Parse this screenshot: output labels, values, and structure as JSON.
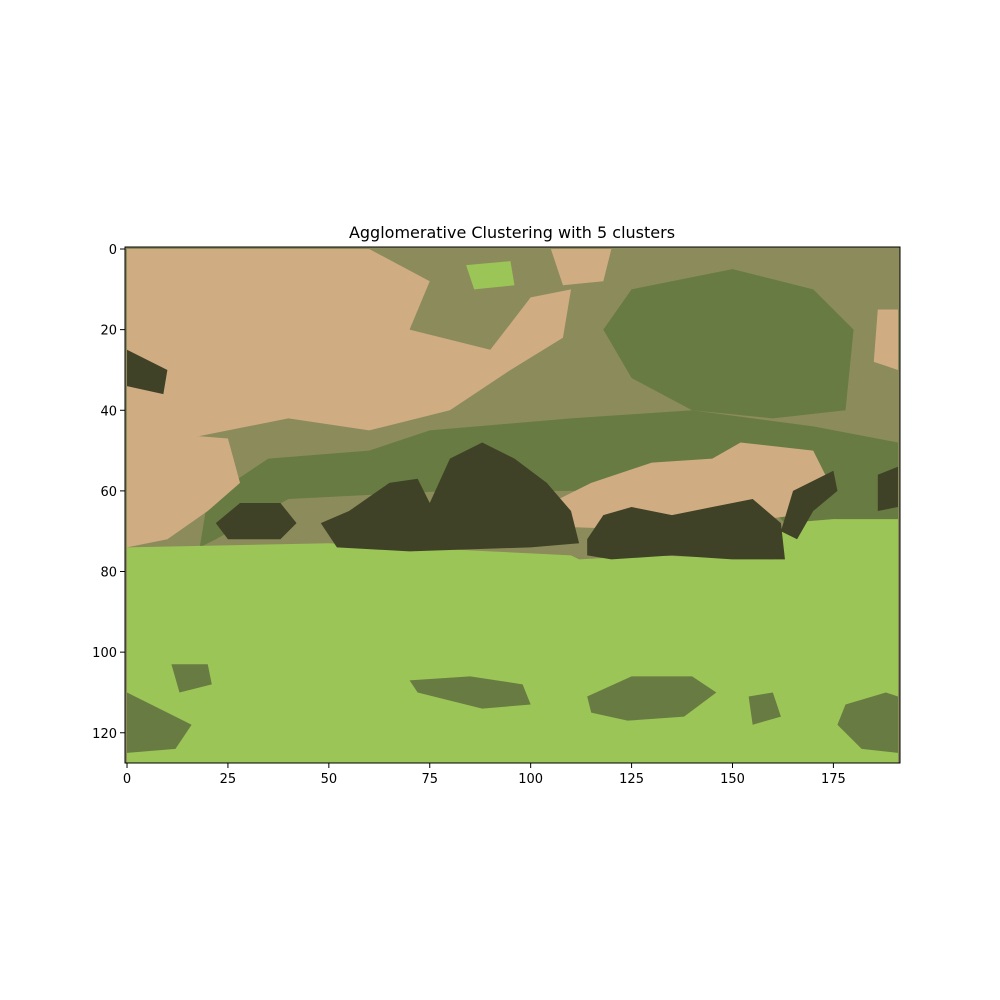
{
  "chart_data": {
    "type": "heatmap",
    "title": "Agglomerative Clustering with 5 clusters",
    "xlabel": "",
    "ylabel": "",
    "grid": false,
    "image_shape": [
      128,
      192
    ],
    "xlim": [
      -0.5,
      191.5
    ],
    "ylim": [
      127.5,
      -0.5
    ],
    "x_ticks": [
      0,
      25,
      50,
      75,
      100,
      125,
      150,
      175
    ],
    "y_ticks": [
      0,
      20,
      40,
      60,
      80,
      100,
      120
    ],
    "cluster_colors": [
      "#cfac82",
      "#8c8b5b",
      "#687b42",
      "#3f4227",
      "#9bc556"
    ],
    "regions": [
      {
        "cluster": 0,
        "description_rows": [
          0,
          45
        ],
        "x_range": [
          0,
          110
        ],
        "polygon": [
          [
            0,
            0
          ],
          [
            60,
            0
          ],
          [
            75,
            8
          ],
          [
            70,
            20
          ],
          [
            90,
            25
          ],
          [
            100,
            12
          ],
          [
            110,
            10
          ],
          [
            108,
            22
          ],
          [
            95,
            30
          ],
          [
            80,
            40
          ],
          [
            60,
            45
          ],
          [
            40,
            42
          ],
          [
            25,
            45
          ],
          [
            0,
            50
          ]
        ]
      },
      {
        "cluster": 0,
        "polygon": [
          [
            0,
            45
          ],
          [
            25,
            47
          ],
          [
            28,
            58
          ],
          [
            20,
            65
          ],
          [
            10,
            72
          ],
          [
            0,
            74
          ]
        ]
      },
      {
        "cluster": 0,
        "polygon": [
          [
            145,
            52
          ],
          [
            152,
            48
          ],
          [
            170,
            50
          ],
          [
            174,
            58
          ],
          [
            166,
            66
          ],
          [
            150,
            68
          ],
          [
            140,
            70
          ],
          [
            110,
            69
          ],
          [
            107,
            62
          ],
          [
            115,
            58
          ],
          [
            130,
            53
          ]
        ]
      },
      {
        "cluster": 0,
        "polygon": [
          [
            186,
            15
          ],
          [
            191,
            15
          ],
          [
            191,
            30
          ],
          [
            185,
            28
          ]
        ]
      },
      {
        "cluster": 0,
        "polygon": [
          [
            105,
            0
          ],
          [
            120,
            0
          ],
          [
            118,
            8
          ],
          [
            108,
            9
          ]
        ]
      },
      {
        "cluster": 3,
        "polygon": [
          [
            0,
            25
          ],
          [
            10,
            30
          ],
          [
            9,
            36
          ],
          [
            0,
            34
          ]
        ]
      },
      {
        "cluster": 3,
        "polygon": [
          [
            22,
            68
          ],
          [
            28,
            63
          ],
          [
            38,
            63
          ],
          [
            42,
            68
          ],
          [
            38,
            72
          ],
          [
            25,
            72
          ]
        ]
      },
      {
        "cluster": 3,
        "polygon": [
          [
            48,
            68
          ],
          [
            55,
            65
          ],
          [
            65,
            58
          ],
          [
            72,
            57
          ],
          [
            75,
            63
          ],
          [
            80,
            52
          ],
          [
            88,
            48
          ],
          [
            96,
            52
          ],
          [
            104,
            58
          ],
          [
            110,
            65
          ],
          [
            112,
            73
          ],
          [
            100,
            74
          ],
          [
            70,
            75
          ],
          [
            52,
            74
          ]
        ]
      },
      {
        "cluster": 3,
        "polygon": [
          [
            114,
            72
          ],
          [
            118,
            66
          ],
          [
            125,
            64
          ],
          [
            135,
            66
          ],
          [
            145,
            64
          ],
          [
            155,
            62
          ],
          [
            162,
            68
          ],
          [
            163,
            77
          ],
          [
            150,
            77
          ],
          [
            135,
            76
          ],
          [
            120,
            77
          ],
          [
            114,
            76
          ]
        ]
      },
      {
        "cluster": 3,
        "polygon": [
          [
            165,
            60
          ],
          [
            175,
            55
          ],
          [
            176,
            60
          ],
          [
            170,
            65
          ],
          [
            166,
            72
          ],
          [
            162,
            70
          ]
        ]
      },
      {
        "cluster": 3,
        "polygon": [
          [
            186,
            56
          ],
          [
            191,
            54
          ],
          [
            191,
            64
          ],
          [
            186,
            65
          ]
        ]
      },
      {
        "cluster": 4,
        "polygon": [
          [
            0,
            74
          ],
          [
            50,
            73
          ],
          [
            90,
            75
          ],
          [
            110,
            76
          ],
          [
            112,
            77
          ],
          [
            130,
            76
          ],
          [
            160,
            77
          ],
          [
            163,
            68
          ],
          [
            175,
            67
          ],
          [
            191,
            67
          ],
          [
            191,
            128
          ],
          [
            0,
            128
          ]
        ]
      },
      {
        "cluster": 4,
        "polygon": [
          [
            84,
            4
          ],
          [
            95,
            3
          ],
          [
            96,
            9
          ],
          [
            86,
            10
          ]
        ]
      },
      {
        "cluster": 2,
        "polygon": [
          [
            11,
            103
          ],
          [
            20,
            103
          ],
          [
            21,
            108
          ],
          [
            13,
            110
          ]
        ]
      },
      {
        "cluster": 2,
        "polygon": [
          [
            70,
            107
          ],
          [
            85,
            106
          ],
          [
            98,
            108
          ],
          [
            100,
            113
          ],
          [
            88,
            114
          ],
          [
            72,
            110
          ]
        ]
      },
      {
        "cluster": 2,
        "polygon": [
          [
            114,
            111
          ],
          [
            125,
            106
          ],
          [
            140,
            106
          ],
          [
            146,
            110
          ],
          [
            138,
            116
          ],
          [
            124,
            117
          ],
          [
            115,
            115
          ]
        ]
      },
      {
        "cluster": 2,
        "polygon": [
          [
            0,
            110
          ],
          [
            10,
            115
          ],
          [
            16,
            118
          ],
          [
            12,
            124
          ],
          [
            0,
            125
          ]
        ]
      },
      {
        "cluster": 2,
        "polygon": [
          [
            154,
            111
          ],
          [
            160,
            110
          ],
          [
            162,
            116
          ],
          [
            155,
            118
          ]
        ]
      },
      {
        "cluster": 2,
        "polygon": [
          [
            178,
            113
          ],
          [
            188,
            110
          ],
          [
            191,
            111
          ],
          [
            191,
            125
          ],
          [
            182,
            124
          ],
          [
            176,
            118
          ]
        ]
      },
      {
        "cluster": 2,
        "polygon": [
          [
            20,
            62
          ],
          [
            35,
            52
          ],
          [
            60,
            50
          ],
          [
            75,
            45
          ],
          [
            110,
            42
          ],
          [
            140,
            40
          ],
          [
            170,
            44
          ],
          [
            191,
            48
          ],
          [
            191,
            68
          ],
          [
            175,
            67
          ],
          [
            163,
            68
          ],
          [
            155,
            60
          ],
          [
            120,
            60
          ],
          [
            80,
            60
          ],
          [
            40,
            62
          ],
          [
            22,
            72
          ],
          [
            18,
            74
          ]
        ]
      },
      {
        "cluster": 2,
        "polygon": [
          [
            125,
            10
          ],
          [
            150,
            5
          ],
          [
            170,
            10
          ],
          [
            180,
            20
          ],
          [
            178,
            40
          ],
          [
            160,
            42
          ],
          [
            140,
            40
          ],
          [
            125,
            32
          ],
          [
            118,
            20
          ]
        ]
      }
    ]
  }
}
